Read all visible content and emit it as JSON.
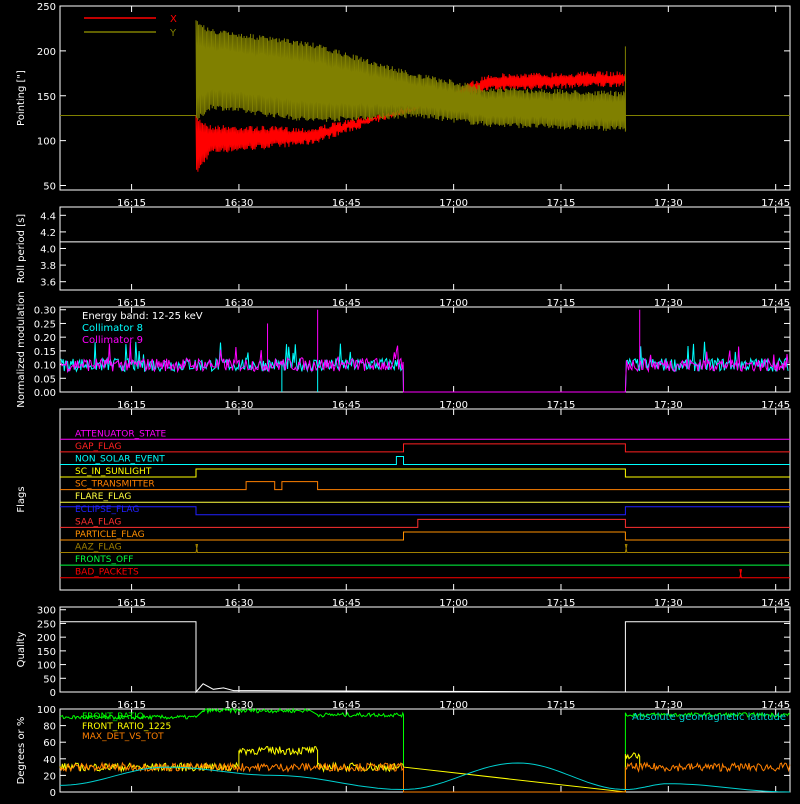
{
  "time_axis": {
    "start": "16:05",
    "end": "17:47",
    "ticks": [
      "16:15",
      "16:30",
      "16:45",
      "17:00",
      "17:15",
      "17:30",
      "17:45"
    ]
  },
  "colors": {
    "axes": "#ffffff",
    "X": "#ff0000",
    "Y": "#808000",
    "collimator8": "#00ffff",
    "collimator9": "#ff00ff",
    "front_ratio": "#00ff00",
    "front_ratio_1225": "#ffff00",
    "max_det": "#ff8000",
    "altitude": "#00d0d0"
  },
  "chart_data": [
    {
      "id": "pointing",
      "type": "line",
      "ylabel": "Pointing [\"]",
      "ylim": [
        45,
        250
      ],
      "yticks": [
        50,
        100,
        150,
        200,
        250
      ],
      "legend": [
        {
          "name": "X",
          "color": "#ff0000"
        },
        {
          "name": "Y",
          "color": "#808000"
        }
      ],
      "legend_placement": "top-left",
      "baseline": 128,
      "active_window": [
        "16:24",
        "17:24"
      ],
      "series": [
        {
          "name": "X",
          "color": "#ff0000",
          "envelope_times": [
            "16:24",
            "16:26",
            "16:40",
            "16:55",
            "17:05",
            "17:24"
          ],
          "upper": [
            128,
            118,
            115,
            140,
            175,
            178
          ],
          "lower": [
            62,
            85,
            95,
            135,
            155,
            160
          ]
        },
        {
          "name": "Y",
          "color": "#808000",
          "envelope_times": [
            "16:24",
            "16:26",
            "16:40",
            "16:55",
            "17:05",
            "17:24"
          ],
          "upper": [
            235,
            225,
            210,
            175,
            160,
            155
          ],
          "lower": [
            120,
            135,
            120,
            125,
            115,
            110
          ]
        }
      ]
    },
    {
      "id": "roll",
      "type": "line",
      "ylabel": "Roll period [s]",
      "ylim": [
        3.5,
        4.5
      ],
      "yticks": [
        3.6,
        3.8,
        4.0,
        4.2,
        4.4
      ],
      "series": [
        {
          "name": "",
          "color": "#ffffff",
          "x": [
            "16:05",
            "17:47"
          ],
          "y": [
            4.08,
            4.08
          ]
        }
      ]
    },
    {
      "id": "modulation",
      "type": "line",
      "ylabel": "Normalized modulation",
      "ylim": [
        0,
        0.31
      ],
      "yticks": [
        0.0,
        0.05,
        0.1,
        0.15,
        0.2,
        0.25,
        0.3
      ],
      "legend": [
        {
          "name": "Energy band: 12-25 keV",
          "color": "#ffffff"
        },
        {
          "name": "Collimator 8",
          "color": "#00ffff"
        },
        {
          "name": "Collimator 9",
          "color": "#ff00ff"
        }
      ],
      "series": [
        {
          "name": "Collimator 8",
          "color": "#00ffff",
          "level": 0.1,
          "gaps": [
            [
              "16:53",
              "17:24"
            ]
          ]
        },
        {
          "name": "Collimator 9",
          "color": "#ff00ff",
          "level": 0.1,
          "gaps": [
            [
              "16:53",
              "17:24"
            ]
          ]
        }
      ],
      "spikes": [
        {
          "t": "16:36",
          "series": "Collimator 8",
          "y": 0.0
        },
        {
          "t": "16:41",
          "series": "Collimator 8",
          "y": 0.0
        },
        {
          "t": "16:41",
          "series": "Collimator 9",
          "y": 0.3
        },
        {
          "t": "16:34",
          "series": "Collimator 9",
          "y": 0.25
        },
        {
          "t": "17:26",
          "series": "Collimator 9",
          "y": 0.3
        }
      ]
    },
    {
      "id": "flags",
      "type": "line",
      "ylabel": "Flags",
      "series": [
        {
          "name": "ATTENUATOR_STATE",
          "color": "#ff00ff",
          "transitions": []
        },
        {
          "name": "GAP_FLAG",
          "color": "#ff2020",
          "transitions": [
            [
              "16:53",
              1
            ],
            [
              "17:24",
              0
            ]
          ]
        },
        {
          "name": "NON_SOLAR_EVENT",
          "color": "#00ffff",
          "transitions": [
            [
              "16:52",
              1
            ],
            [
              "16:53",
              0
            ]
          ]
        },
        {
          "name": "SC_IN_SUNLIGHT",
          "color": "#ffff00",
          "transitions": [
            [
              "16:24",
              1
            ],
            [
              "17:24",
              0
            ]
          ]
        },
        {
          "name": "SC_TRANSMITTER",
          "color": "#ff8000",
          "transitions": [
            [
              "16:31",
              1
            ],
            [
              "16:35",
              0
            ],
            [
              "16:36",
              1
            ],
            [
              "16:41",
              0
            ]
          ]
        },
        {
          "name": "FLARE_FLAG",
          "color": "#ffff40",
          "transitions": []
        },
        {
          "name": "ECLIPSE_FLAG",
          "color": "#2020ff",
          "start_high": true,
          "transitions": [
            [
              "16:24",
              0
            ],
            [
              "17:24",
              1
            ]
          ]
        },
        {
          "name": "SAA_FLAG",
          "color": "#ff3030",
          "transitions": [
            [
              "16:55",
              1
            ],
            [
              "17:24",
              0
            ]
          ]
        },
        {
          "name": "PARTICLE_FLAG",
          "color": "#ff9000",
          "transitions": [
            [
              "16:53",
              1
            ],
            [
              "17:24",
              0
            ]
          ]
        },
        {
          "name": "AAZ_FLAG",
          "color": "#a08000",
          "transitions": [
            [
              "16:24",
              1
            ],
            [
              "16:24",
              0
            ],
            [
              "17:24",
              1
            ],
            [
              "17:24",
              0
            ]
          ]
        },
        {
          "name": "FRONTS_OFF",
          "color": "#00ff40",
          "transitions": []
        },
        {
          "name": "BAD_PACKETS",
          "color": "#ff0000",
          "transitions": [
            [
              "17:40",
              1
            ],
            [
              "17:40",
              0
            ]
          ]
        }
      ]
    },
    {
      "id": "quality",
      "type": "line",
      "ylabel": "Quality",
      "ylim": [
        0,
        310
      ],
      "yticks": [
        0,
        50,
        100,
        150,
        200,
        250,
        300
      ],
      "series": [
        {
          "name": "",
          "color": "#ffffff",
          "x": [
            "16:05",
            "16:24",
            "16:24",
            "16:25",
            "16:26",
            "16:27",
            "16:28",
            "17:24",
            "17:24",
            "17:47"
          ],
          "y": [
            256,
            256,
            0,
            30,
            10,
            15,
            5,
            0,
            256,
            256
          ]
        }
      ]
    },
    {
      "id": "ratios",
      "type": "line",
      "ylabel": "Degrees or %",
      "ylim": [
        0,
        100
      ],
      "yticks": [
        0,
        20,
        40,
        60,
        80,
        100
      ],
      "legend": [
        {
          "name": "FRONT_RATIO",
          "color": "#00ff00"
        },
        {
          "name": "FRONT_RATIO_1225",
          "color": "#ffff00"
        },
        {
          "name": "MAX_DET_VS_TOT",
          "color": "#ff8000"
        }
      ],
      "annotation": {
        "text": "Absolute geomagnetic latitude",
        "color": "#00d0d0"
      },
      "series": [
        {
          "name": "FRONT_RATIO",
          "color": "#00ff00",
          "x": [
            "16:05",
            "16:24",
            "16:25",
            "16:40",
            "16:41",
            "16:53",
            "16:53",
            "17:24",
            "17:24",
            "17:47"
          ],
          "y": [
            90,
            90,
            98,
            98,
            93,
            93,
            0,
            0,
            93,
            93
          ]
        },
        {
          "name": "FRONT_RATIO_1225",
          "color": "#ffff00",
          "x": [
            "16:05",
            "16:30",
            "16:30",
            "16:41",
            "16:41",
            "16:53",
            "17:24",
            "17:24",
            "17:26",
            "17:26"
          ],
          "y": [
            30,
            30,
            50,
            50,
            30,
            30,
            0,
            43,
            43,
            30
          ]
        },
        {
          "name": "MAX_DET_VS_TOT",
          "color": "#ff8000",
          "x": [
            "16:05",
            "16:53",
            "16:53",
            "17:24",
            "17:24",
            "17:47"
          ],
          "y": [
            30,
            30,
            0,
            0,
            30,
            30
          ]
        },
        {
          "name": "Absolute geomagnetic latitude",
          "color": "#00d0d0",
          "x": [
            "16:05",
            "16:20",
            "16:35",
            "16:53",
            "17:09",
            "17:24",
            "17:30",
            "17:47"
          ],
          "y": [
            8,
            30,
            20,
            3,
            35,
            3,
            10,
            0
          ]
        }
      ]
    }
  ]
}
